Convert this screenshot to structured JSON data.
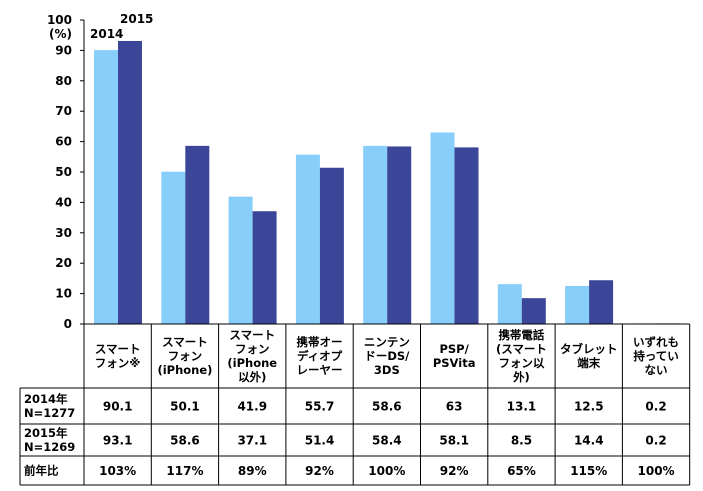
{
  "chart_data": {
    "type": "bar",
    "ylabel": "(%)",
    "ylim": [
      0,
      100
    ],
    "yticks": [
      0,
      10,
      20,
      30,
      40,
      50,
      60,
      70,
      80,
      90,
      100
    ],
    "grid": false,
    "categories": [
      [
        "スマート",
        "フォン※"
      ],
      [
        "スマート",
        "フォン",
        "(iPhone)"
      ],
      [
        "スマート",
        "フォン",
        "(iPhone",
        "以外)"
      ],
      [
        "携帯オー",
        "ディオプ",
        "レーヤー"
      ],
      [
        "ニンテン",
        "ドーDS/",
        "3DS"
      ],
      [
        "PSP/",
        "PSVita"
      ],
      [
        "携帯電話",
        "(スマート",
        "フォン以",
        "外)"
      ],
      [
        "タブレット",
        "端末"
      ],
      [
        "いずれも",
        "持ってい",
        "ない"
      ]
    ],
    "series": [
      {
        "name": "2014",
        "color": "#87CEFA",
        "values": [
          90.1,
          50.1,
          41.9,
          55.7,
          58.6,
          63,
          13.1,
          12.5,
          0.2
        ]
      },
      {
        "name": "2015",
        "color": "#3B4699",
        "values": [
          93.1,
          58.6,
          37.1,
          51.4,
          58.4,
          58.1,
          8.5,
          14.4,
          0.2
        ]
      }
    ],
    "table": {
      "row_labels": [
        [
          "2014年",
          "N=1277"
        ],
        [
          "2015年",
          "N=1269"
        ],
        [
          "前年比"
        ]
      ],
      "rows": [
        [
          "90.1",
          "50.1",
          "41.9",
          "55.7",
          "58.6",
          "63",
          "13.1",
          "12.5",
          "0.2"
        ],
        [
          "93.1",
          "58.6",
          "37.1",
          "51.4",
          "58.4",
          "58.1",
          "8.5",
          "14.4",
          "0.2"
        ],
        [
          "103%",
          "117%",
          "89%",
          "92%",
          "100%",
          "92%",
          "65%",
          "115%",
          "100%"
        ]
      ]
    }
  }
}
